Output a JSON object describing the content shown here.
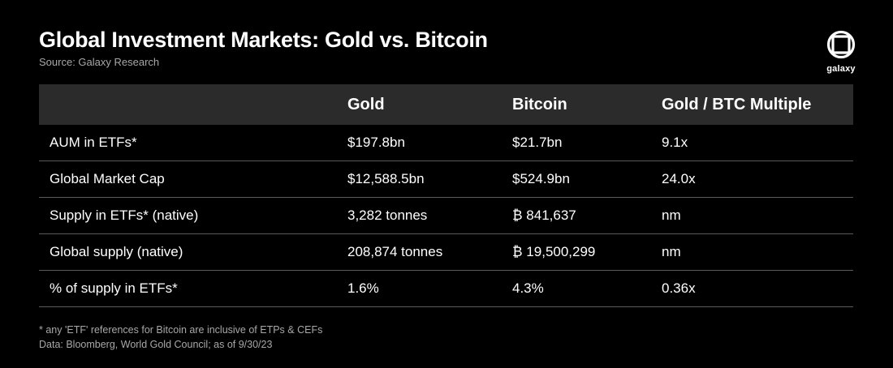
{
  "header": {
    "title": "Global Investment Markets: Gold vs. Bitcoin",
    "source": "Source: Galaxy Research",
    "logo_text": "galaxy"
  },
  "chart_data": {
    "type": "table",
    "columns": [
      "",
      "Gold",
      "Bitcoin",
      "Gold / BTC Multiple"
    ],
    "rows": [
      [
        "AUM in ETFs*",
        "$197.8bn",
        "$21.7bn",
        "9.1x"
      ],
      [
        "Global Market Cap",
        "$12,588.5bn",
        "$524.9bn",
        "24.0x"
      ],
      [
        "Supply in ETFs* (native)",
        "3,282 tonnes",
        "₿ 841,637",
        "nm"
      ],
      [
        "Global supply (native)",
        "208,874 tonnes",
        "₿ 19,500,299",
        "nm"
      ],
      [
        "% of supply in ETFs*",
        "1.6%",
        "4.3%",
        "0.36x"
      ]
    ]
  },
  "footer": {
    "note": "* any 'ETF' references for Bitcoin are inclusive of ETPs & CEFs",
    "data_source": "Data: Bloomberg, World Gold Council; as of 9/30/23"
  },
  "colors": {
    "background": "#000000",
    "header_row": "#2b2b2b",
    "row_divider": "#5a5a5a",
    "muted_text": "#a8a8a8"
  }
}
